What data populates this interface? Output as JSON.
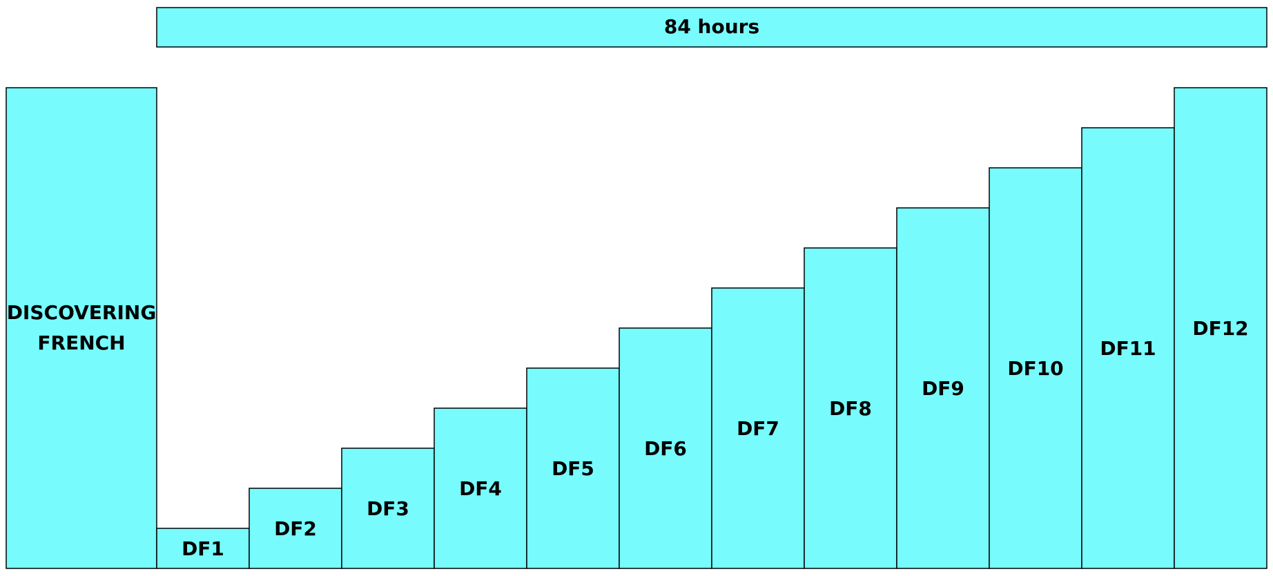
{
  "header": {
    "title": "84 hours"
  },
  "intro": {
    "lines": [
      "DISCOVERING",
      "FRENCH"
    ]
  },
  "steps": [
    "DF1",
    "DF2",
    "DF3",
    "DF4",
    "DF5",
    "DF6",
    "DF7",
    "DF8",
    "DF9",
    "DF10",
    "DF11",
    "DF12"
  ]
}
